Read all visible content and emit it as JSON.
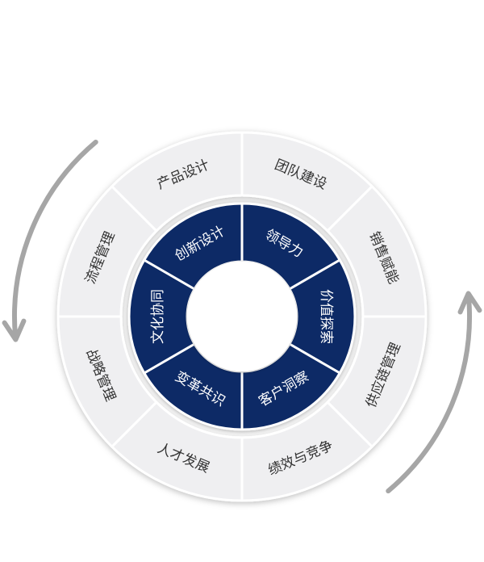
{
  "diagram": {
    "outer_ring": {
      "segments": [
        {
          "label": "团队建设"
        },
        {
          "label": "销售赋能"
        },
        {
          "label": "供应链管理"
        },
        {
          "label": "绩效与竞争"
        },
        {
          "label": "人才发展"
        },
        {
          "label": "战略管理"
        },
        {
          "label": "流程管理"
        },
        {
          "label": "产品设计"
        }
      ],
      "fill": "#efeff1",
      "divider": "#ffffff"
    },
    "inner_ring": {
      "segments": [
        {
          "label": "领导力"
        },
        {
          "label": "价值探索"
        },
        {
          "label": "客户洞察"
        },
        {
          "label": "变革共识"
        },
        {
          "label": "文化协同"
        },
        {
          "label": "创新设计"
        }
      ],
      "fill": "#0e2a66",
      "divider": "#ffffff"
    },
    "arrows": [
      {
        "name": "left-arrow",
        "direction": "counterclockwise",
        "color": "#a6a6a6"
      },
      {
        "name": "right-arrow",
        "direction": "counterclockwise",
        "color": "#a6a6a6"
      }
    ]
  }
}
